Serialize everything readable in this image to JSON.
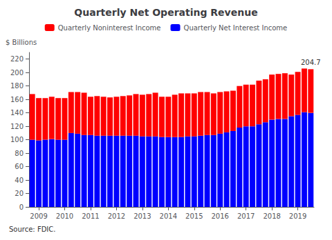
{
  "chart_data": {
    "type": "bar",
    "title": "Quarterly Net Operating Revenue",
    "ylabel": "$ Billions",
    "source": "Source: FDIC.",
    "annotation": "204.7",
    "categories": [
      null,
      "2009",
      null,
      null,
      null,
      "2010",
      null,
      null,
      null,
      "2011",
      null,
      null,
      null,
      "2012",
      null,
      null,
      null,
      "2013",
      null,
      null,
      null,
      "2014",
      null,
      null,
      null,
      "2015",
      null,
      null,
      null,
      "2016",
      null,
      null,
      null,
      "2017",
      null,
      null,
      null,
      "2018",
      null,
      null,
      null,
      "2019",
      null,
      null
    ],
    "series": [
      {
        "name": "Quarterly Net Interest Income",
        "color": "#0000ff",
        "values": [
          100,
          99,
          100,
          101,
          100,
          100,
          110,
          109,
          107,
          107,
          106,
          106,
          106,
          106,
          106,
          106,
          106,
          105,
          105,
          105,
          104,
          104,
          104,
          104,
          105,
          105,
          106,
          107,
          107,
          109,
          111,
          113,
          118,
          120,
          120,
          123,
          126,
          130,
          131,
          131,
          135,
          137,
          141,
          140
        ]
      },
      {
        "name": "Quarterly Noninterest Income",
        "color": "#ff0000",
        "values": [
          68,
          63,
          62,
          63,
          62,
          62,
          61,
          62,
          63,
          57,
          59,
          58,
          57,
          58,
          59,
          60,
          62,
          62,
          63,
          65,
          60,
          60,
          63,
          65,
          64,
          64,
          65,
          64,
          62,
          62,
          61,
          60,
          62,
          62,
          62,
          65,
          64,
          67,
          67,
          68,
          62,
          64,
          65,
          65
        ]
      }
    ],
    "stacked": true,
    "ylim": [
      0,
      230
    ],
    "yticks": [
      0,
      20,
      40,
      60,
      80,
      100,
      120,
      140,
      160,
      180,
      200,
      220
    ],
    "grid": false,
    "legend": "top"
  }
}
